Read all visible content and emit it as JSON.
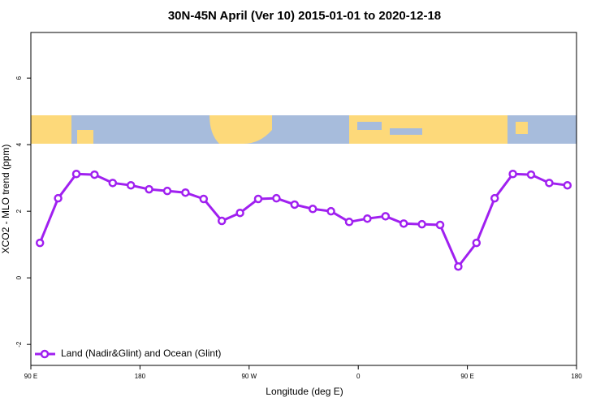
{
  "chart_data": {
    "type": "line",
    "title": "30N-45N April (Ver 10)   2015-01-01 to 2020-12-18",
    "x_label": "Longitude (deg E)",
    "y_label": "XCO2 - MLO trend (ppm)",
    "x": [
      97.5,
      112.5,
      127.5,
      142.5,
      157.5,
      172.5,
      187.5,
      202.5,
      217.5,
      232.5,
      247.5,
      262.5,
      277.5,
      292.5,
      307.5,
      322.5,
      337.5,
      352.5,
      367.5,
      382.5,
      397.5,
      412.5,
      427.5,
      442.5,
      457.5,
      472.5,
      487.5,
      502.5,
      517.5,
      532.5
    ],
    "series": [
      {
        "name": "Land (Nadir&Glint) and Ocean (Glint)",
        "color": "#a020f0",
        "values": [
          1.05,
          2.39,
          3.12,
          3.1,
          2.85,
          2.78,
          2.66,
          2.61,
          2.56,
          2.37,
          1.71,
          1.95,
          2.37,
          2.39,
          2.2,
          2.07,
          2.0,
          1.68,
          1.78,
          1.85,
          1.63,
          1.61,
          1.59,
          0.34,
          1.05,
          2.39,
          3.12,
          3.1,
          2.85,
          2.78
        ]
      }
    ],
    "xlim": [
      90,
      540
    ],
    "xticks": [
      {
        "value": 90,
        "label": "90 E"
      },
      {
        "value": 180,
        "label": "180"
      },
      {
        "value": 270,
        "label": "90 W"
      },
      {
        "value": 360,
        "label": "0"
      },
      {
        "value": 450,
        "label": "90 E"
      },
      {
        "value": 540,
        "label": "180"
      }
    ],
    "ylim": [
      -2.63,
      7.37
    ],
    "yticks": [
      -2,
      0,
      2,
      4,
      6
    ],
    "legend": "bottom-left"
  }
}
